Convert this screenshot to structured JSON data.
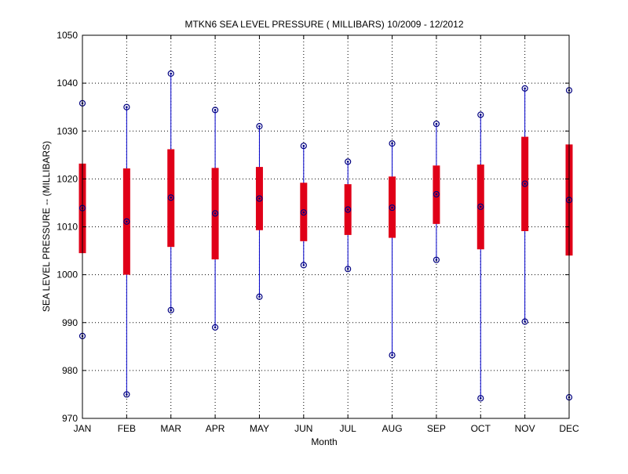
{
  "chart_data": {
    "type": "box",
    "title": "MTKN6  SEA LEVEL PRESSURE ( MILLIBARS) 10/2009 - 12/2012",
    "xlabel": "Month",
    "ylabel": "SEA LEVEL PRESSURE -- (MILLIBARS)",
    "ylim": [
      970,
      1050
    ],
    "yticks": [
      970,
      980,
      990,
      1000,
      1010,
      1020,
      1030,
      1040,
      1050
    ],
    "grid": true,
    "categories": [
      "JAN",
      "FEB",
      "MAR",
      "APR",
      "MAY",
      "JUN",
      "JUL",
      "AUG",
      "SEP",
      "OCT",
      "NOV",
      "DEC"
    ],
    "series": [
      {
        "name": "min",
        "values": [
          987.2,
          975.0,
          992.6,
          989.0,
          995.4,
          1002.0,
          1001.2,
          983.2,
          1003.1,
          974.2,
          990.2,
          974.4
        ]
      },
      {
        "name": "q1",
        "values": [
          1004.5,
          1000.0,
          1005.8,
          1003.2,
          1009.3,
          1007.0,
          1008.3,
          1007.7,
          1010.6,
          1005.3,
          1009.1,
          1004.0
        ]
      },
      {
        "name": "median",
        "values": [
          1013.9,
          1011.1,
          1016.1,
          1012.8,
          1015.9,
          1013.0,
          1013.6,
          1014.0,
          1016.8,
          1014.2,
          1019.0,
          1015.6
        ]
      },
      {
        "name": "q3",
        "values": [
          1023.2,
          1022.2,
          1026.2,
          1022.3,
          1022.5,
          1019.2,
          1018.9,
          1020.5,
          1022.8,
          1023.0,
          1028.8,
          1027.2
        ]
      },
      {
        "name": "max",
        "values": [
          1035.8,
          1035.0,
          1042.0,
          1034.4,
          1031.0,
          1026.9,
          1023.6,
          1027.4,
          1031.5,
          1033.4,
          1038.9,
          1038.5
        ]
      }
    ],
    "colors": {
      "whisker": "#0000cc",
      "box": "#e00018",
      "marker": "#000080",
      "axis": "#000000"
    }
  }
}
